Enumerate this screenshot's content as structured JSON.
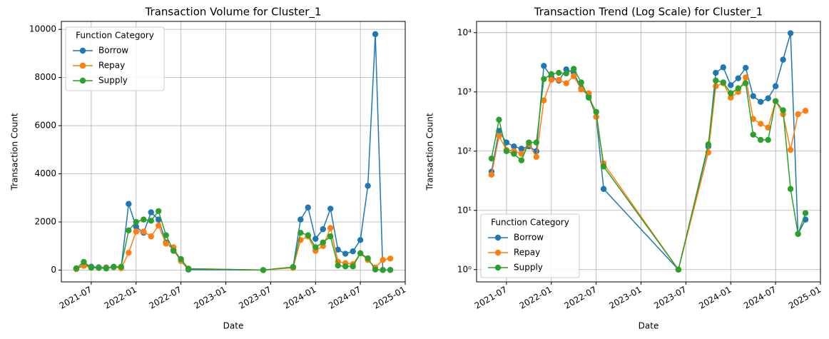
{
  "chart_data": [
    {
      "type": "line",
      "title": "Transaction Volume for Cluster_1",
      "xlabel": "Date",
      "ylabel": "Transaction Count",
      "legend_title": "Function Category",
      "legend": "upper left",
      "log_scale": false,
      "grid": true,
      "x": [
        "2021-05",
        "2021-06",
        "2021-07",
        "2021-08",
        "2021-09",
        "2021-10",
        "2021-11",
        "2021-12",
        "2022-01",
        "2022-02",
        "2022-03",
        "2022-04",
        "2022-05",
        "2022-06",
        "2022-07",
        "2022-08",
        "2023-06",
        "2023-10",
        "2023-11",
        "2023-12",
        "2024-01",
        "2024-02",
        "2024-03",
        "2024-04",
        "2024-05",
        "2024-06",
        "2024-07",
        "2024-08",
        "2024-09",
        "2024-10",
        "2024-11"
      ],
      "xlim": [
        "2021-03",
        "2025-01"
      ],
      "xticks": [
        "2021-07",
        "2022-01",
        "2022-07",
        "2023-01",
        "2023-07",
        "2024-01",
        "2024-07",
        "2025-01"
      ],
      "ylim": [
        -490,
        10330
      ],
      "yticks": [
        0,
        2000,
        4000,
        6000,
        8000,
        10000
      ],
      "series": [
        {
          "name": "Borrow",
          "color": "#1f77b4",
          "values": [
            45,
            220,
            140,
            120,
            110,
            120,
            100,
            2750,
            1800,
            1550,
            2400,
            2100,
            1150,
            850,
            380,
            23,
            1,
            120,
            2100,
            2600,
            1300,
            1700,
            2550,
            850,
            680,
            780,
            1250,
            3500,
            9800,
            4,
            7
          ]
        },
        {
          "name": "Repay",
          "color": "#ff7f0e",
          "values": [
            40,
            180,
            105,
            100,
            90,
            130,
            80,
            720,
            1600,
            1600,
            1400,
            1850,
            1100,
            950,
            380,
            62,
            1,
            95,
            1250,
            1400,
            800,
            1000,
            1750,
            350,
            290,
            250,
            700,
            420,
            105,
            420,
            480
          ]
        },
        {
          "name": "Supply",
          "color": "#2ca02c",
          "values": [
            75,
            340,
            100,
            90,
            70,
            140,
            140,
            1650,
            2000,
            2100,
            2050,
            2450,
            1450,
            800,
            460,
            55,
            1,
            130,
            1550,
            1450,
            950,
            1150,
            1400,
            190,
            155,
            155,
            700,
            490,
            23,
            4,
            9
          ]
        }
      ]
    },
    {
      "type": "line",
      "title": "Transaction Trend (Log Scale) for Cluster_1",
      "xlabel": "Date",
      "ylabel": "Transaction Count",
      "legend_title": "Function Category",
      "legend": "lower left",
      "log_scale": true,
      "grid": true,
      "x": [
        "2021-05",
        "2021-06",
        "2021-07",
        "2021-08",
        "2021-09",
        "2021-10",
        "2021-11",
        "2021-12",
        "2022-01",
        "2022-02",
        "2022-03",
        "2022-04",
        "2022-05",
        "2022-06",
        "2022-07",
        "2022-08",
        "2023-06",
        "2023-10",
        "2023-11",
        "2023-12",
        "2024-01",
        "2024-02",
        "2024-03",
        "2024-04",
        "2024-05",
        "2024-06",
        "2024-07",
        "2024-08",
        "2024-09",
        "2024-10",
        "2024-11"
      ],
      "xlim": [
        "2021-03",
        "2025-01"
      ],
      "xticks": [
        "2021-07",
        "2022-01",
        "2022-07",
        "2023-01",
        "2023-07",
        "2024-01",
        "2024-07",
        "2025-01"
      ],
      "ylim": [
        0.62,
        15500
      ],
      "yticks": [
        {
          "value": 1,
          "label": "10⁰"
        },
        {
          "value": 10,
          "label": "10¹"
        },
        {
          "value": 100,
          "label": "10²"
        },
        {
          "value": 1000,
          "label": "10³"
        },
        {
          "value": 10000,
          "label": "10⁴"
        }
      ],
      "series": [
        {
          "name": "Borrow",
          "color": "#1f77b4",
          "values": [
            45,
            220,
            140,
            120,
            110,
            120,
            100,
            2750,
            1800,
            1550,
            2400,
            2100,
            1150,
            850,
            380,
            23,
            1,
            120,
            2100,
            2600,
            1300,
            1700,
            2550,
            850,
            680,
            780,
            1250,
            3500,
            9800,
            4,
            7
          ]
        },
        {
          "name": "Repay",
          "color": "#ff7f0e",
          "values": [
            40,
            180,
            105,
            100,
            90,
            130,
            80,
            720,
            1600,
            1600,
            1400,
            1850,
            1100,
            950,
            380,
            62,
            1,
            95,
            1250,
            1400,
            800,
            1000,
            1750,
            350,
            290,
            250,
            700,
            420,
            105,
            420,
            480
          ]
        },
        {
          "name": "Supply",
          "color": "#2ca02c",
          "values": [
            75,
            340,
            100,
            90,
            70,
            140,
            140,
            1650,
            2000,
            2100,
            2050,
            2450,
            1450,
            800,
            460,
            55,
            1,
            130,
            1550,
            1450,
            950,
            1150,
            1400,
            190,
            155,
            155,
            700,
            490,
            23,
            4,
            9
          ]
        }
      ]
    }
  ]
}
